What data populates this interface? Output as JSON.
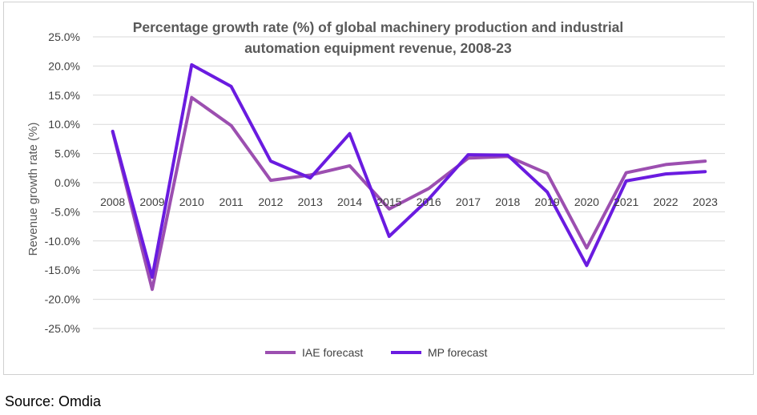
{
  "chart_data": {
    "type": "line",
    "title_lines": [
      "Percentage growth rate (%) of global machinery production and industrial",
      "automation equipment revenue, 2008-23"
    ],
    "xlabel": "",
    "ylabel": "Revenue growth rate (%)",
    "categories": [
      "2008",
      "2009",
      "2010",
      "2011",
      "2012",
      "2013",
      "2014",
      "2015",
      "2016",
      "2017",
      "2018",
      "2019",
      "2020",
      "2021",
      "2022",
      "2023"
    ],
    "ylim": [
      -25,
      25
    ],
    "yticks": [
      25,
      20,
      15,
      10,
      5,
      0,
      -5,
      -10,
      -15,
      -20,
      -25
    ],
    "ytick_labels": [
      "25.0%",
      "20.0%",
      "15.0%",
      "10.0%",
      "5.0%",
      "0.0%",
      "-5.0%",
      "-10.0%",
      "-15.0%",
      "-20.0%",
      "-25.0%"
    ],
    "grid": true,
    "legend_position": "bottom",
    "series": [
      {
        "name": "IAE forecast",
        "color": "#9c4fb0",
        "values": [
          8.7,
          -18.3,
          14.6,
          9.8,
          0.4,
          1.3,
          2.9,
          -4.5,
          -1.0,
          4.2,
          4.5,
          1.6,
          -11.2,
          1.7,
          3.1,
          3.7
        ]
      },
      {
        "name": "MP forecast",
        "color": "#6a1be0",
        "values": [
          8.8,
          -16.2,
          20.2,
          16.5,
          3.7,
          0.8,
          8.4,
          -9.2,
          -2.8,
          4.8,
          4.7,
          -1.6,
          -14.2,
          0.3,
          1.5,
          1.9
        ]
      }
    ]
  },
  "source": "Source: Omdia"
}
